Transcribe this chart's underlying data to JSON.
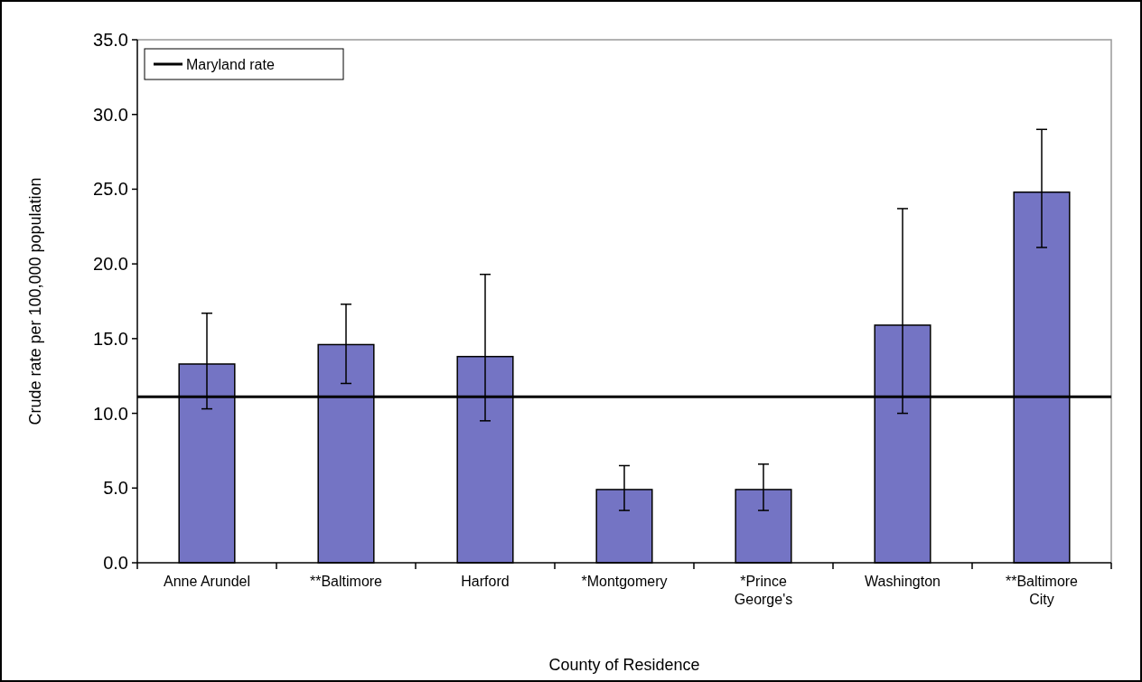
{
  "chart_data": {
    "type": "bar",
    "xlabel": "County of Residence",
    "ylabel": "Crude rate per 100,000 population",
    "categories": [
      "Anne Arundel",
      "**Baltimore",
      "Harford",
      "*Montgomery",
      "*Prince George's",
      "Washington",
      "**Baltimore City"
    ],
    "values": [
      13.3,
      14.6,
      13.8,
      4.9,
      4.9,
      15.9,
      24.8
    ],
    "errors": [
      [
        10.3,
        16.7
      ],
      [
        12.0,
        17.3
      ],
      [
        9.5,
        19.3
      ],
      [
        3.5,
        6.5
      ],
      [
        3.5,
        6.6
      ],
      [
        10.0,
        23.7
      ],
      [
        21.1,
        29.0
      ]
    ],
    "color": "#7474c4",
    "ylim": [
      0,
      35
    ],
    "yticks": [
      {
        "value": 0,
        "label": "0.0"
      },
      {
        "value": 5,
        "label": "5.0"
      },
      {
        "value": 10,
        "label": "10.0"
      },
      {
        "value": 15,
        "label": "15.0"
      },
      {
        "value": 20,
        "label": "20.0"
      },
      {
        "value": 25,
        "label": "25.0"
      },
      {
        "value": 30,
        "label": "30.0"
      },
      {
        "value": 35,
        "label": "35.0"
      }
    ],
    "ref_lines": [
      {
        "axis": "y",
        "value": 11.1,
        "label": "Maryland rate",
        "color": "#000000"
      }
    ],
    "legend": "top left"
  }
}
